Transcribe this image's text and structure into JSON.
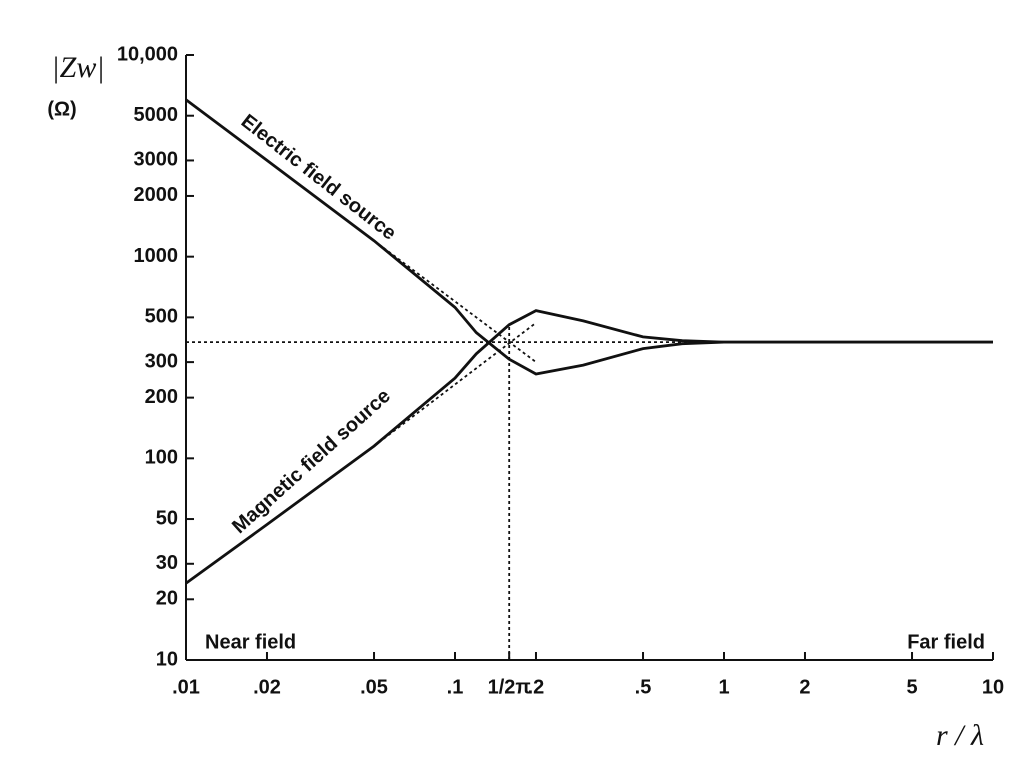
{
  "chart_data": {
    "type": "line",
    "y_label": "|Zw|",
    "y_unit": "(Ω)",
    "x_label": "r / λ",
    "annotations": [
      "Near field",
      "Far field"
    ],
    "xlog": true,
    "ylog": true,
    "xlim": [
      0.01,
      10
    ],
    "ylim": [
      10,
      10000
    ],
    "xticks": [
      {
        "value": 0.01,
        "label": ".01"
      },
      {
        "value": 0.02,
        "label": ".02"
      },
      {
        "value": 0.05,
        "label": ".05"
      },
      {
        "value": 0.1,
        "label": ".1"
      },
      {
        "value": 0.159,
        "label": "1/2π"
      },
      {
        "value": 0.2,
        "label": ".2"
      },
      {
        "value": 0.5,
        "label": ".5"
      },
      1,
      2,
      5,
      10
    ],
    "yticks": [
      10,
      20,
      30,
      50,
      100,
      200,
      300,
      500,
      1000,
      2000,
      3000,
      5000,
      {
        "value": 10000,
        "label": "10,000"
      }
    ],
    "series": [
      {
        "name": "Electric field source",
        "color": "#111111",
        "style": "solid",
        "x": [
          0.01,
          0.02,
          0.05,
          0.1,
          0.12,
          0.159,
          0.2,
          0.3,
          0.5,
          0.7,
          1,
          2,
          5,
          10
        ],
        "values": [
          6000,
          3000,
          1200,
          560,
          420,
          310,
          262,
          290,
          350,
          370,
          377,
          377,
          377,
          377
        ]
      },
      {
        "name": "Magnetic field source",
        "color": "#111111",
        "style": "solid",
        "x": [
          0.01,
          0.02,
          0.05,
          0.1,
          0.12,
          0.159,
          0.2,
          0.3,
          0.5,
          0.7,
          1,
          2,
          5,
          10
        ],
        "values": [
          24,
          47,
          115,
          250,
          330,
          460,
          540,
          480,
          400,
          383,
          377,
          377,
          377,
          377
        ]
      },
      {
        "color": "#111111",
        "style": "dotted",
        "x": [
          0.05,
          0.2
        ],
        "values": [
          1200,
          300
        ]
      },
      {
        "color": "#111111",
        "style": "dotted",
        "x": [
          0.05,
          0.2
        ],
        "values": [
          115,
          470
        ]
      },
      {
        "color": "#111111",
        "style": "dotted",
        "x": [
          0.01,
          1
        ],
        "values": [
          377,
          377
        ]
      },
      {
        "color": "#111111",
        "style": "dotted",
        "x": [
          0.159,
          0.159
        ],
        "values": [
          10,
          450
        ]
      }
    ]
  }
}
